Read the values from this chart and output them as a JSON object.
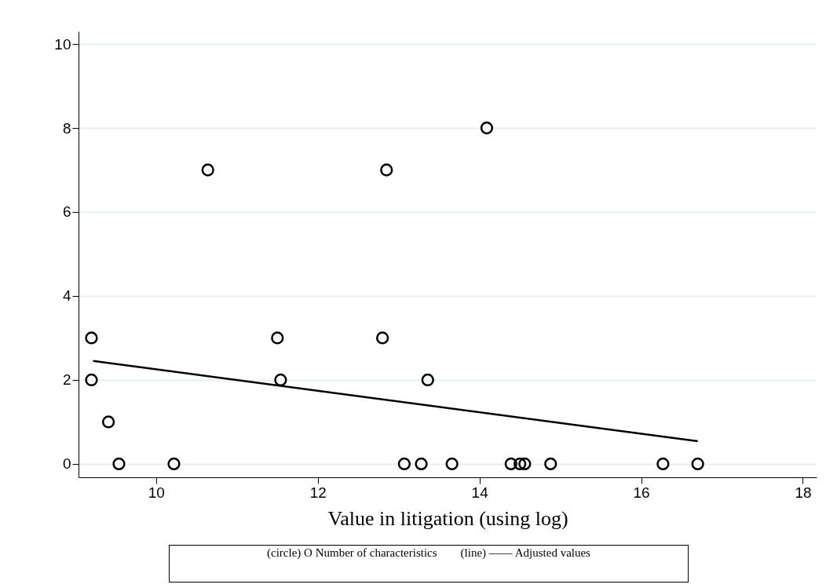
{
  "chart_data": {
    "type": "scatter",
    "xlabel": "Value in litigation (using log)",
    "xlim": [
      9.04,
      18.17
    ],
    "xticks": [
      10,
      12,
      14,
      16,
      18
    ],
    "ylim": [
      -0.32,
      10.3
    ],
    "yticks": [
      0,
      2,
      4,
      6,
      8,
      10
    ],
    "grid": "y",
    "series": [
      {
        "color": "#000000",
        "marker": "circle",
        "x": [
          9.2,
          9.2,
          9.41,
          9.54,
          10.22,
          10.64,
          11.5,
          11.54,
          12.8,
          12.85,
          13.07,
          13.28,
          13.36,
          13.66,
          14.09,
          14.39,
          14.5,
          14.56,
          14.88,
          16.27,
          16.7
        ],
        "values": [
          3,
          2,
          1,
          0,
          0,
          7,
          3,
          2,
          3,
          7,
          0,
          0,
          2,
          0,
          8,
          0,
          0,
          0,
          0,
          0,
          0
        ]
      },
      {
        "type": "line",
        "color": "#000000",
        "line_style": "solid",
        "x": [
          9.22,
          16.7
        ],
        "values": [
          2.45,
          0.54
        ]
      }
    ],
    "annotations": [
      "(circle) O Number of characteristics        (line) —— Adjusted values"
    ]
  }
}
